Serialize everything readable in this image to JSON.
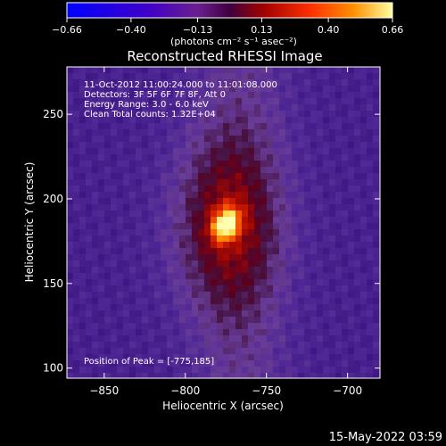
{
  "chart_data": {
    "type": "heatmap",
    "title": "Reconstructed RHESSI Image",
    "xlabel": "Heliocentric X (arcsec)",
    "ylabel": "Heliocentric Y (arcsec)",
    "xlim": [
      -873,
      -680
    ],
    "ylim": [
      94,
      278
    ],
    "x_ticks": [
      -850,
      -800,
      -750,
      -700
    ],
    "y_ticks": [
      100,
      150,
      200,
      250
    ],
    "colorbar": {
      "min": -0.66,
      "max": 0.66,
      "ticks": [
        -0.66,
        -0.4,
        -0.13,
        0.13,
        0.4,
        0.66
      ],
      "tick_labels": [
        "−0.66",
        "−0.40",
        "−0.13",
        "0.13",
        "0.40",
        "0.66"
      ],
      "unit_label": "(photons cm⁻² s⁻¹ asec⁻²)"
    },
    "annotations": [
      "11-Oct-2012 11:00:24.000 to 11:01:08.000",
      "Detectors: 3F 5F 6F 7F 8F, Att 0",
      "Energy Range: 3.0 - 6.0 keV",
      "Clean     Total counts: 1.32E+04"
    ],
    "peak_label": "Position of Peak = [-775,185]",
    "peak": {
      "x": -775,
      "y": 185
    },
    "timestamp": "15-May-2022 03:59"
  }
}
